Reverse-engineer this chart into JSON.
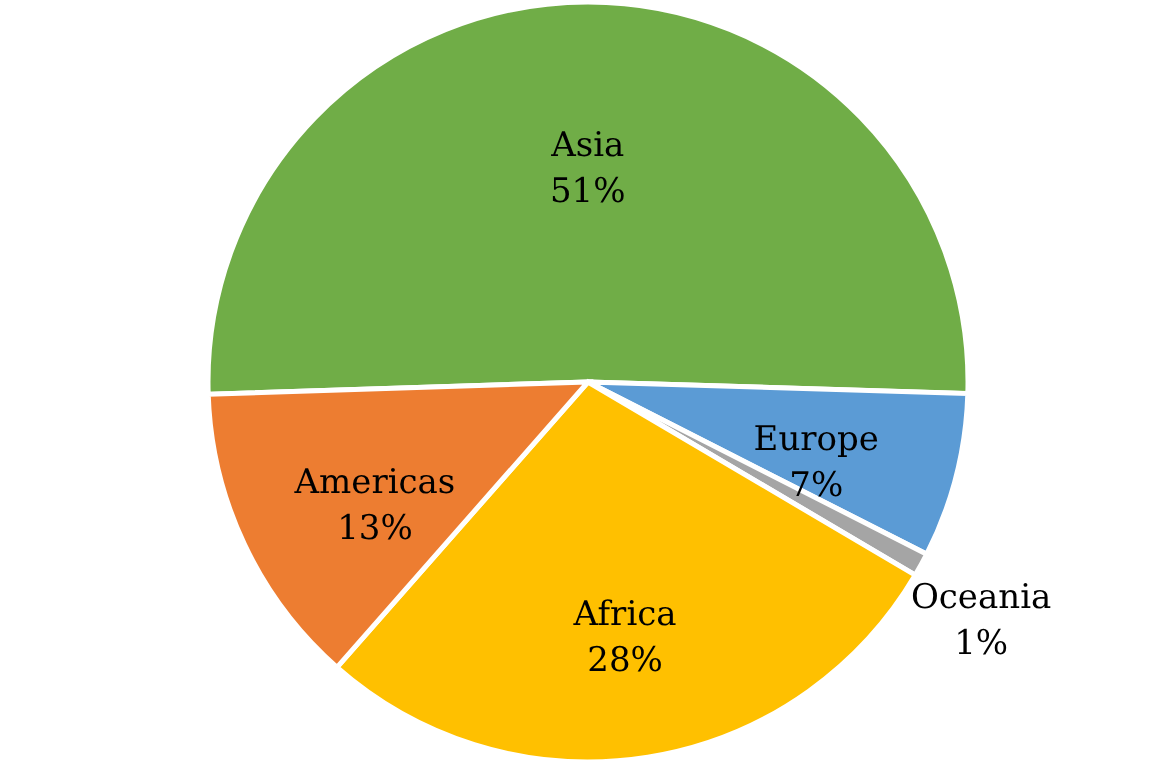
{
  "chart_data": {
    "type": "pie",
    "categories": [
      "Asia",
      "Europe",
      "Oceania",
      "Africa",
      "Americas"
    ],
    "values": [
      51,
      7,
      1,
      28,
      13
    ],
    "colors": [
      "#70ad47",
      "#5b9bd5",
      "#a5a5a5",
      "#ffc000",
      "#ed7d31"
    ],
    "value_labels": [
      "51%",
      "7%",
      "1%",
      "28%",
      "13%"
    ]
  }
}
